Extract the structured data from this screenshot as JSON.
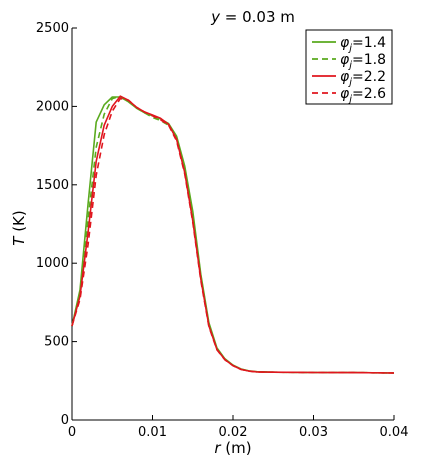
{
  "chart_data": {
    "type": "line",
    "title": "y = 0.03 m",
    "title_var": "y",
    "title_rest": " = 0.03 m",
    "xlabel": "r (m)",
    "xlabel_var": "r",
    "xlabel_rest": " (m)",
    "ylabel": "T (K)",
    "ylabel_var": "T",
    "ylabel_rest": " (K)",
    "xlim": [
      0,
      0.04
    ],
    "ylim": [
      0,
      2500
    ],
    "xticks": [
      0,
      0.01,
      0.02,
      0.03,
      0.04
    ],
    "xtick_labels": [
      "0",
      "0.01",
      "0.02",
      "0.03",
      "0.04"
    ],
    "yticks": [
      0,
      500,
      1000,
      1500,
      2000,
      2500
    ],
    "ytick_labels": [
      "0",
      "500",
      "1000",
      "1500",
      "2000",
      "2500"
    ],
    "grid": false,
    "legend_position": "top-right",
    "legend_symbol": "φ",
    "legend_sub": "j",
    "series": [
      {
        "name": "φj=1.4",
        "label_value": "=1.4",
        "color": "#5aaa1e",
        "dash": "solid",
        "x": [
          0,
          0.001,
          0.002,
          0.003,
          0.004,
          0.005,
          0.006,
          0.007,
          0.008,
          0.009,
          0.01,
          0.011,
          0.012,
          0.013,
          0.014,
          0.015,
          0.016,
          0.017,
          0.018,
          0.019,
          0.02,
          0.021,
          0.022,
          0.023,
          0.025,
          0.03,
          0.035,
          0.04
        ],
        "y": [
          600,
          830,
          1380,
          1900,
          2010,
          2060,
          2060,
          2030,
          1990,
          1960,
          1940,
          1920,
          1890,
          1810,
          1620,
          1330,
          930,
          620,
          460,
          390,
          350,
          325,
          313,
          308,
          305,
          303,
          302,
          300
        ]
      },
      {
        "name": "φj=1.8",
        "label_value": "=1.8",
        "color": "#5aaa1e",
        "dash": "dashed",
        "x": [
          0,
          0.001,
          0.002,
          0.003,
          0.004,
          0.005,
          0.006,
          0.007,
          0.008,
          0.009,
          0.01,
          0.011,
          0.012,
          0.013,
          0.014,
          0.015,
          0.016,
          0.017,
          0.018,
          0.019,
          0.02,
          0.021,
          0.022,
          0.023,
          0.025,
          0.03,
          0.035,
          0.04
        ],
        "y": [
          600,
          810,
          1280,
          1740,
          1950,
          2050,
          2065,
          2035,
          1990,
          1960,
          1930,
          1910,
          1880,
          1800,
          1610,
          1300,
          920,
          610,
          455,
          388,
          348,
          324,
          312,
          307,
          305,
          303,
          302,
          300
        ]
      },
      {
        "name": "φj=2.2",
        "label_value": "=2.2",
        "color": "#e0161e",
        "dash": "solid",
        "x": [
          0,
          0.001,
          0.002,
          0.003,
          0.004,
          0.005,
          0.006,
          0.007,
          0.008,
          0.009,
          0.01,
          0.011,
          0.012,
          0.013,
          0.014,
          0.015,
          0.016,
          0.017,
          0.018,
          0.019,
          0.02,
          0.021,
          0.022,
          0.023,
          0.025,
          0.03,
          0.035,
          0.04
        ],
        "y": [
          600,
          790,
          1200,
          1650,
          1880,
          2000,
          2065,
          2040,
          1995,
          1965,
          1945,
          1925,
          1885,
          1790,
          1580,
          1270,
          900,
          600,
          450,
          385,
          347,
          323,
          312,
          307,
          305,
          303,
          302,
          300
        ]
      },
      {
        "name": "φj=2.6",
        "label_value": "=2.6",
        "color": "#e0161e",
        "dash": "dashed",
        "x": [
          0,
          0.001,
          0.002,
          0.003,
          0.004,
          0.005,
          0.006,
          0.007,
          0.008,
          0.009,
          0.01,
          0.011,
          0.012,
          0.013,
          0.014,
          0.015,
          0.016,
          0.017,
          0.018,
          0.019,
          0.02,
          0.021,
          0.022,
          0.023,
          0.025,
          0.03,
          0.035,
          0.04
        ],
        "y": [
          600,
          770,
          1120,
          1560,
          1820,
          1970,
          2050,
          2040,
          1995,
          1965,
          1940,
          1915,
          1880,
          1780,
          1570,
          1260,
          890,
          595,
          448,
          384,
          346,
          322,
          311,
          306,
          305,
          303,
          302,
          300
        ]
      }
    ]
  }
}
